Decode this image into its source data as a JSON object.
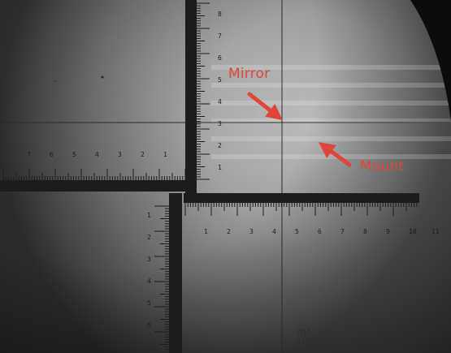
{
  "annotations": {
    "mirror_label": "Mirror",
    "mount_label": "Mount"
  },
  "reticle": {
    "stamp_line1": "M1A",
    "stamp_line2": "2487-1"
  },
  "colors": {
    "annotation": "#e0453c",
    "reticle": "#1c1c1c",
    "field_center": "#c9cbcb",
    "field_edge": "#3a3a3a",
    "vignette": "#0c0c0c"
  },
  "icons": [
    "arrow-pointing-down-right",
    "arrow-pointing-up-left"
  ]
}
